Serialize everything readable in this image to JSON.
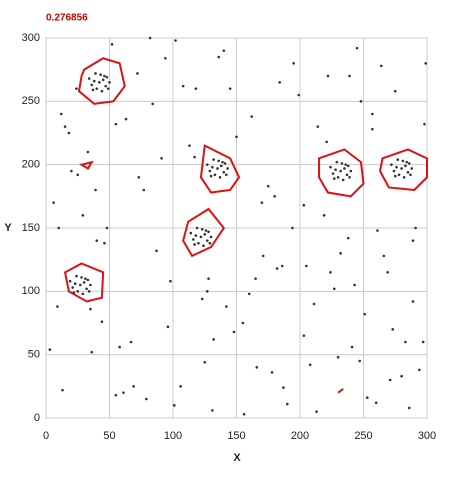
{
  "chart_data": {
    "type": "scatter",
    "title": "0.276856",
    "title_color": "#cc0000",
    "x_label": "X",
    "y_label": "Y",
    "xlim": [
      0,
      300
    ],
    "ylim": [
      0,
      300
    ],
    "xticks": [
      0,
      50,
      100,
      150,
      200,
      250,
      300
    ],
    "yticks": [
      0,
      50,
      100,
      150,
      200,
      250,
      300
    ],
    "grid": true,
    "color": "#333333",
    "contour_color": "#dd1111",
    "x": [
      12,
      55,
      87,
      140,
      203,
      260,
      291,
      33,
      178,
      222,
      9,
      118,
      165,
      247,
      73,
      195,
      280,
      40,
      132,
      214,
      102,
      269,
      61,
      155,
      238,
      18,
      297,
      84,
      190,
      123,
      6,
      248,
      171,
      58,
      227,
      94,
      286,
      145,
      25,
      208,
      113,
      273,
      48,
      182,
      136,
      257,
      69,
      219,
      3,
      160,
      101,
      243,
      29,
      199,
      294,
      77,
      150,
      232,
      44,
      264,
      125,
      186,
      15,
      253,
      91,
      170,
      283,
      52,
      211,
      108,
      239,
      36,
      175,
      79,
      266,
      127,
      298,
      20,
      156,
      205,
      63,
      230,
      142,
      275,
      98,
      187,
      10,
      245,
      117,
      67,
      221,
      289,
      39,
      162,
      251,
      82,
      194,
      131,
      271,
      24,
      213,
      106,
      257,
      46,
      180,
      289,
      72,
      148,
      224,
      35,
      166,
      261,
      96,
      203,
      13,
      241,
      128,
      55,
      299,
      184,
      42,
      45,
      38,
      47,
      40,
      48,
      36,
      43,
      39,
      50,
      34,
      44,
      46,
      37,
      49,
      135,
      138,
      131,
      140,
      133,
      141,
      129,
      136,
      132,
      143,
      127,
      137,
      139,
      130,
      142,
      232,
      235,
      228,
      237,
      230,
      238,
      226,
      233,
      229,
      240,
      224,
      234,
      236,
      227,
      239,
      280,
      283,
      276,
      285,
      278,
      286,
      274,
      281,
      277,
      288,
      272,
      282,
      284,
      275,
      287,
      122,
      125,
      118,
      127,
      120,
      128,
      116,
      123,
      119,
      130,
      114,
      124,
      126,
      117,
      129,
      27,
      30,
      23,
      32,
      25,
      33,
      21,
      28,
      24,
      35,
      19,
      29,
      31,
      22,
      34
    ],
    "values": [
      240,
      18,
      132,
      290,
      65,
      12,
      150,
      210,
      36,
      270,
      88,
      260,
      110,
      45,
      190,
      280,
      33,
      140,
      62,
      230,
      298,
      115,
      20,
      75,
      142,
      225,
      60,
      248,
      11,
      94,
      170,
      250,
      128,
      56,
      102,
      284,
      8,
      260,
      192,
      42,
      215,
      70,
      150,
      118,
      285,
      240,
      25,
      160,
      54,
      98,
      10,
      105,
      160,
      255,
      38,
      180,
      222,
      130,
      76,
      278,
      44,
      120,
      230,
      16,
      205,
      170,
      60,
      295,
      90,
      262,
      270,
      52,
      183,
      15,
      128,
      100,
      232,
      195,
      3,
      120,
      236,
      48,
      88,
      258,
      108,
      24,
      150,
      292,
      206,
      60,
      218,
      140,
      180,
      238,
      82,
      300,
      150,
      6,
      30,
      260,
      5,
      25,
      228,
      138,
      175,
      92,
      272,
      68,
      115,
      86,
      40,
      148,
      72,
      168,
      22,
      56,
      110,
      232,
      280,
      265,
      265,
      267,
      266,
      262,
      260,
      269,
      263,
      271,
      272,
      265,
      268,
      258,
      270,
      259,
      260,
      197,
      199,
      198,
      194,
      192,
      201,
      195,
      203,
      204,
      197,
      200,
      190,
      202,
      191,
      192,
      195,
      197,
      196,
      192,
      190,
      199,
      193,
      201,
      202,
      195,
      198,
      188,
      200,
      189,
      190,
      197,
      199,
      198,
      194,
      192,
      201,
      195,
      203,
      204,
      197,
      200,
      190,
      202,
      191,
      192,
      143,
      145,
      144,
      140,
      138,
      147,
      141,
      149,
      150,
      143,
      146,
      136,
      148,
      137,
      138,
      105,
      107,
      106,
      102,
      100,
      109,
      103,
      111,
      112,
      105,
      108,
      98,
      110,
      99,
      100
    ],
    "contours": [
      {
        "x": [
          30,
          45,
          58,
          62,
          53,
          38,
          26,
          28
        ],
        "y": [
          275,
          284,
          280,
          262,
          250,
          248,
          258,
          270
        ]
      },
      {
        "x": [
          125,
          145,
          152,
          145,
          130,
          122
        ],
        "y": [
          215,
          205,
          190,
          180,
          178,
          190
        ]
      },
      {
        "x": [
          215,
          235,
          248,
          250,
          240,
          222,
          215
        ],
        "y": [
          205,
          212,
          202,
          185,
          175,
          178,
          190
        ]
      },
      {
        "x": [
          265,
          285,
          300,
          300,
          290,
          270,
          263
        ],
        "y": [
          205,
          212,
          205,
          190,
          180,
          182,
          195
        ]
      },
      {
        "x": [
          112,
          128,
          140,
          130,
          115,
          108
        ],
        "y": [
          155,
          165,
          150,
          135,
          128,
          140
        ]
      },
      {
        "x": [
          15,
          28,
          45,
          44,
          32,
          18
        ],
        "y": [
          115,
          122,
          115,
          95,
          92,
          100
        ]
      },
      {
        "x": [
          28,
          36,
          33
        ],
        "y": [
          200,
          202,
          197
        ]
      },
      {
        "x": [
          230,
          234
        ],
        "y": [
          20,
          23
        ]
      }
    ]
  }
}
